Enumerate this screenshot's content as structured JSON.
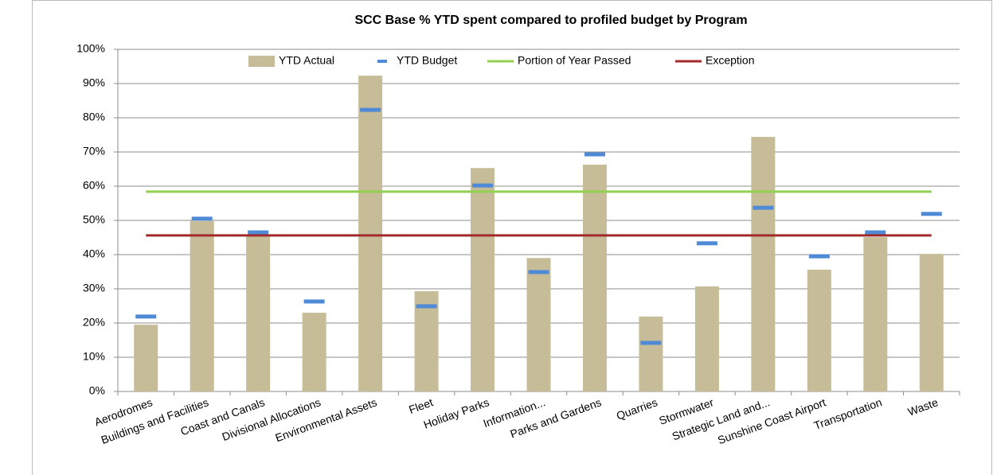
{
  "chart_data": {
    "type": "bar",
    "title": "SCC Base % YTD spent compared to profiled budget by Program",
    "categories": [
      "Aerodromes",
      "Buildings and Facilities",
      "Coast and Canals",
      "Divisional Allocations",
      "Environmental Assets",
      "Fleet",
      "Holiday Parks",
      "Information...",
      "Parks and Gardens",
      "Quarries",
      "Stormwater",
      "Strategic Land and...",
      "Sunshine Coast Airport",
      "Transportation",
      "Waste"
    ],
    "series": [
      {
        "name": "YTD Actual",
        "type": "bar",
        "color": "#c7bc98",
        "values": [
          19.5,
          49.8,
          45.6,
          23,
          92.3,
          29.3,
          65.3,
          39,
          66.3,
          21.9,
          30.7,
          74.4,
          35.6,
          45.1,
          40.2
        ]
      },
      {
        "name": "YTD Budget",
        "type": "dash",
        "color": "#4f8ad6",
        "values": [
          21.9,
          50.5,
          46.5,
          26.3,
          82.3,
          24.9,
          60.2,
          34.9,
          69.3,
          14.2,
          43.3,
          53.7,
          39.5,
          46.5,
          51.9
        ]
      },
      {
        "name": "Portion of Year Passed",
        "type": "line",
        "color": "#92d050",
        "values": [
          58.4,
          58.4,
          58.4,
          58.4,
          58.4,
          58.4,
          58.4,
          58.4,
          58.4,
          58.4,
          58.4,
          58.4,
          58.4,
          58.4,
          58.4
        ]
      },
      {
        "name": "Exception",
        "type": "line",
        "color": "#a32a2a",
        "values": [
          45.6,
          45.6,
          45.6,
          45.6,
          45.6,
          45.6,
          45.6,
          45.6,
          45.6,
          45.6,
          45.6,
          45.6,
          45.6,
          45.6,
          45.6
        ]
      }
    ],
    "ylim": [
      0,
      100
    ],
    "yticks": [
      {
        "value": 0,
        "label": "0%"
      },
      {
        "value": 10,
        "label": "10%"
      },
      {
        "value": 20,
        "label": "20%"
      },
      {
        "value": 30,
        "label": "30%"
      },
      {
        "value": 40,
        "label": "40%"
      },
      {
        "value": 50,
        "label": "50%"
      },
      {
        "value": 60,
        "label": "60%"
      },
      {
        "value": 70,
        "label": "70%"
      },
      {
        "value": 80,
        "label": "80%"
      },
      {
        "value": 90,
        "label": "90%"
      },
      {
        "value": 100,
        "label": "100%"
      }
    ],
    "grid": true,
    "legend": "top"
  }
}
